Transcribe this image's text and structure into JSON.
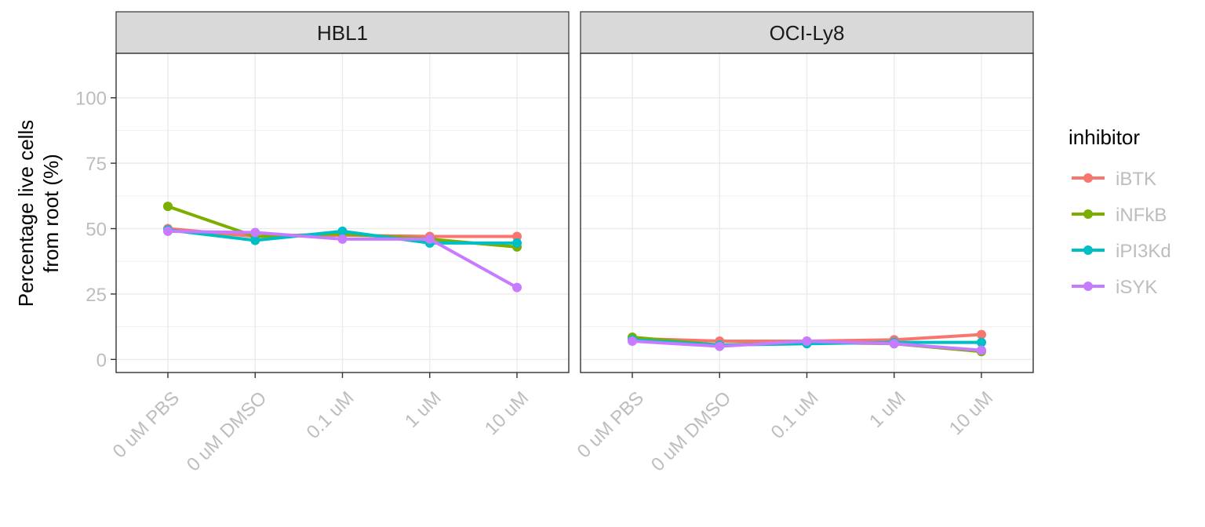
{
  "chart_data": {
    "type": "line",
    "ylabel_lines": [
      "Percentage live cells",
      "from root (%)"
    ],
    "ylim": [
      -5,
      117
    ],
    "yticks": [
      0,
      25,
      50,
      75,
      100
    ],
    "categories": [
      "0 uM PBS",
      "0 uM DMSO",
      "0.1 uM",
      "1 uM",
      "10 uM"
    ],
    "legend": {
      "title": "inhibitor",
      "position": "right"
    },
    "grid": true,
    "panels": [
      {
        "title": "HBL1",
        "series": [
          {
            "name": "iBTK",
            "color": "#F8766D",
            "values": [
              50,
              47,
              47.5,
              47,
              47
            ]
          },
          {
            "name": "iNFkB",
            "color": "#7CAE00",
            "values": [
              58.5,
              47,
              48,
              46,
              43
            ]
          },
          {
            "name": "iPI3Kd",
            "color": "#00BFC4",
            "values": [
              49.5,
              45.5,
              49,
              44.5,
              44.5
            ]
          },
          {
            "name": "iSYK",
            "color": "#C77CFF",
            "values": [
              49,
              48.5,
              46,
              46,
              27.5
            ]
          }
        ]
      },
      {
        "title": "OCI-Ly8",
        "series": [
          {
            "name": "iBTK",
            "color": "#F8766D",
            "values": [
              8,
              7,
              7,
              7.5,
              9.5
            ]
          },
          {
            "name": "iNFkB",
            "color": "#7CAE00",
            "values": [
              8.5,
              5.5,
              6.5,
              6,
              3
            ]
          },
          {
            "name": "iPI3Kd",
            "color": "#00BFC4",
            "values": [
              7.5,
              5.5,
              6,
              6.5,
              6.5
            ]
          },
          {
            "name": "iSYK",
            "color": "#C77CFF",
            "values": [
              7,
              5,
              7,
              6,
              3.5
            ]
          }
        ]
      }
    ]
  }
}
